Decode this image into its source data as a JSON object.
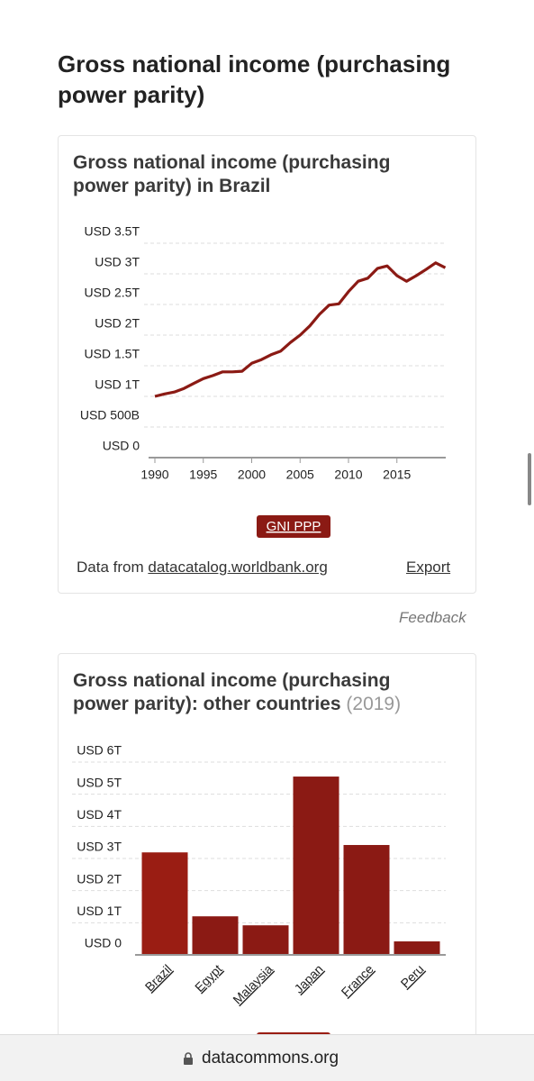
{
  "header": {
    "title": "Gross national income (purchasing power parity)"
  },
  "chart_data": [
    {
      "type": "line",
      "title": "Gross national income (purchasing power parity) in Brazil",
      "x": [
        1990,
        1991,
        1992,
        1993,
        1994,
        1995,
        1996,
        1997,
        1998,
        1999,
        2000,
        2001,
        2002,
        2003,
        2004,
        2005,
        2006,
        2007,
        2008,
        2009,
        2010,
        2011,
        2012,
        2013,
        2014,
        2015,
        2016,
        2017,
        2018,
        2019,
        2020
      ],
      "series": [
        {
          "name": "GNI PPP",
          "color": "#8b1a14",
          "values": [
            1000000000000.0,
            1040000000000.0,
            1070000000000.0,
            1130000000000.0,
            1210000000000.0,
            1290000000000.0,
            1340000000000.0,
            1400000000000.0,
            1400000000000.0,
            1410000000000.0,
            1540000000000.0,
            1600000000000.0,
            1680000000000.0,
            1740000000000.0,
            1880000000000.0,
            2000000000000.0,
            2150000000000.0,
            2340000000000.0,
            2490000000000.0,
            2510000000000.0,
            2710000000000.0,
            2880000000000.0,
            2930000000000.0,
            3090000000000.0,
            3130000000000.0,
            2970000000000.0,
            2880000000000.0,
            2970000000000.0,
            3070000000000.0,
            3180000000000.0,
            3100000000000.0
          ]
        }
      ],
      "xlim": [
        1990,
        2020
      ],
      "xticks": [
        1990,
        1995,
        2000,
        2005,
        2010,
        2015
      ],
      "ylim": [
        0,
        3500000000000.0
      ],
      "yticks": [
        {
          "value": 0,
          "label": "USD 0"
        },
        {
          "value": 500000000000.0,
          "label": "USD 500B"
        },
        {
          "value": 1000000000000.0,
          "label": "USD 1T"
        },
        {
          "value": 1500000000000.0,
          "label": "USD 1.5T"
        },
        {
          "value": 2000000000000.0,
          "label": "USD 2T"
        },
        {
          "value": 2500000000000.0,
          "label": "USD 2.5T"
        },
        {
          "value": 3000000000000.0,
          "label": "USD 3T"
        },
        {
          "value": 3500000000000.0,
          "label": "USD 3.5T"
        }
      ],
      "grid": true
    },
    {
      "type": "bar",
      "title": "Gross national income (purchasing power parity): other countries",
      "subtitle": "(2019)",
      "categories": [
        "Brazil",
        "Egypt",
        "Malaysia",
        "Japan",
        "France",
        "Peru"
      ],
      "values": [
        3190000000000.0,
        1200000000000.0,
        920000000000.0,
        5550000000000.0,
        3420000000000.0,
        420000000000.0
      ],
      "colors": [
        "#9a1d13",
        "#8b1a14",
        "#8b1a14",
        "#8b1a14",
        "#8b1a14",
        "#8b1a14"
      ],
      "ylim": [
        0,
        6000000000000.0
      ],
      "yticks": [
        {
          "value": 0,
          "label": "USD 0"
        },
        {
          "value": 1000000000000.0,
          "label": "USD 1T"
        },
        {
          "value": 2000000000000.0,
          "label": "USD 2T"
        },
        {
          "value": 3000000000000.0,
          "label": "USD 3T"
        },
        {
          "value": 4000000000000.0,
          "label": "USD 4T"
        },
        {
          "value": 5000000000000.0,
          "label": "USD 5T"
        },
        {
          "value": 6000000000000.0,
          "label": "USD 6T"
        }
      ],
      "grid": true
    }
  ],
  "source": {
    "prefix": "Data from",
    "link": "datacatalog.worldbank.org",
    "export": "Export"
  },
  "feedback": "Feedback",
  "url": "datacommons.org"
}
